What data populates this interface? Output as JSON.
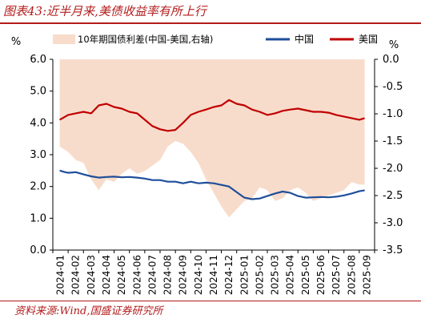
{
  "figure": {
    "title": "图表43:近半月来,美债收益率有所上行",
    "source": "资料来源:Wind,国盛证券研究所"
  },
  "chart_data": {
    "type": "line",
    "left_axis": {
      "unit": "%",
      "min": 0,
      "max": 6,
      "ticks": [
        "0.0",
        "1.0",
        "2.0",
        "3.0",
        "4.0",
        "5.0",
        "6.0"
      ]
    },
    "right_axis": {
      "unit": "%",
      "min": -3.5,
      "max": 0,
      "ticks": [
        "0.0",
        "-0.5",
        "-1.0",
        "-1.5",
        "-2.0",
        "-2.5",
        "-3.0",
        "-3.5"
      ]
    },
    "x_ticks": [
      "2024-01",
      "2024-02",
      "2024-03",
      "2024-04",
      "2024-05",
      "2024-06",
      "2024-07",
      "2024-08",
      "2024-09",
      "2024-10",
      "2024-11",
      "2024-12",
      "2025-01",
      "2025-02",
      "2025-03",
      "2025-04",
      "2025-05",
      "2025-06",
      "2025-07",
      "2025-08",
      "2025-09"
    ],
    "grid": false,
    "legend_position": "top",
    "series": [
      {
        "name": "10年期国债利差(中国-美国,右轴)",
        "axis": "right",
        "style": "area",
        "color": "#f8dccb",
        "x": [
          0.45,
          1.0,
          1.5,
          2.0,
          2.5,
          3.0,
          3.5,
          4.0,
          4.5,
          5.0,
          5.5,
          6.0,
          6.5,
          7.0,
          7.5,
          8.0,
          8.5,
          9.0,
          9.5,
          10.0,
          10.5,
          11.0,
          11.5,
          12.0,
          12.5,
          13.0,
          13.5,
          14.0,
          14.5,
          15.0,
          15.5,
          16.0,
          16.5,
          17.0,
          17.5,
          18.0,
          18.5,
          19.0,
          19.5,
          20.0,
          20.35
        ],
        "values": [
          -1.6,
          -1.7,
          -1.85,
          -1.9,
          -2.2,
          -2.4,
          -2.2,
          -2.25,
          -2.1,
          -2.0,
          -2.1,
          -2.05,
          -1.95,
          -1.85,
          -1.6,
          -1.5,
          -1.55,
          -1.7,
          -1.9,
          -2.2,
          -2.45,
          -2.7,
          -2.9,
          -2.75,
          -2.6,
          -2.55,
          -2.35,
          -2.4,
          -2.6,
          -2.55,
          -2.4,
          -2.35,
          -2.45,
          -2.6,
          -2.55,
          -2.5,
          -2.45,
          -2.4,
          -2.25,
          -2.3,
          -2.3
        ]
      },
      {
        "name": "中国",
        "axis": "left",
        "style": "line",
        "color": "#1f4e9a",
        "x": [
          0.45,
          0.8,
          1.0,
          1.5,
          2.0,
          2.5,
          3.0,
          3.5,
          4.0,
          4.5,
          5.0,
          5.5,
          6.0,
          6.5,
          7.0,
          7.5,
          8.0,
          8.5,
          9.0,
          9.5,
          10.0,
          10.5,
          11.0,
          11.5,
          12.0,
          12.5,
          13.0,
          13.5,
          14.0,
          14.5,
          15.0,
          15.5,
          16.0,
          16.5,
          17.0,
          17.5,
          18.0,
          18.5,
          19.0,
          19.5,
          20.0,
          20.35
        ],
        "values": [
          2.5,
          2.45,
          2.43,
          2.45,
          2.38,
          2.32,
          2.28,
          2.3,
          2.31,
          2.29,
          2.3,
          2.28,
          2.25,
          2.2,
          2.2,
          2.15,
          2.15,
          2.1,
          2.15,
          2.1,
          2.12,
          2.1,
          2.05,
          2.0,
          1.82,
          1.65,
          1.6,
          1.62,
          1.7,
          1.78,
          1.84,
          1.8,
          1.7,
          1.65,
          1.66,
          1.67,
          1.66,
          1.68,
          1.72,
          1.78,
          1.85,
          1.88
        ]
      },
      {
        "name": "美国",
        "axis": "left",
        "style": "line",
        "color": "#c00000",
        "x": [
          0.45,
          1.0,
          1.5,
          2.0,
          2.5,
          3.0,
          3.5,
          4.0,
          4.5,
          5.0,
          5.5,
          6.0,
          6.5,
          7.0,
          7.5,
          8.0,
          8.5,
          9.0,
          9.5,
          10.0,
          10.5,
          11.0,
          11.5,
          12.0,
          12.5,
          13.0,
          13.5,
          14.0,
          14.5,
          15.0,
          15.5,
          16.0,
          16.5,
          17.0,
          17.5,
          18.0,
          18.5,
          19.0,
          19.5,
          20.0,
          20.35
        ],
        "values": [
          4.1,
          4.25,
          4.3,
          4.35,
          4.3,
          4.55,
          4.6,
          4.5,
          4.45,
          4.35,
          4.3,
          4.1,
          3.9,
          3.8,
          3.75,
          3.78,
          4.0,
          4.25,
          4.35,
          4.42,
          4.5,
          4.55,
          4.72,
          4.6,
          4.55,
          4.42,
          4.35,
          4.25,
          4.3,
          4.38,
          4.42,
          4.45,
          4.4,
          4.35,
          4.35,
          4.32,
          4.25,
          4.2,
          4.15,
          4.1,
          4.15
        ]
      }
    ]
  }
}
